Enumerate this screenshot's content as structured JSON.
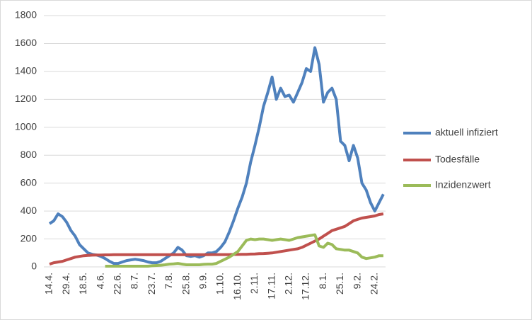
{
  "chart_data": {
    "type": "line",
    "categories": [
      "14.4.",
      null,
      null,
      null,
      "29.4.",
      null,
      null,
      null,
      "18.5.",
      null,
      null,
      null,
      "4.6.",
      null,
      null,
      null,
      "22.6.",
      null,
      null,
      null,
      "8.7.",
      null,
      null,
      null,
      "23.7.",
      null,
      null,
      null,
      "7.8.",
      null,
      null,
      null,
      "25.8.",
      null,
      null,
      null,
      "9.9.",
      null,
      null,
      null,
      "1.10.",
      null,
      null,
      null,
      "16.10.",
      null,
      null,
      null,
      "2.11.",
      null,
      null,
      null,
      "17.11.",
      null,
      null,
      null,
      "2.12.",
      null,
      null,
      null,
      "17.12.",
      null,
      null,
      null,
      "8.1.",
      null,
      null,
      null,
      "25.1.",
      null,
      null,
      null,
      "9.2.",
      null,
      null,
      null,
      "24.2.",
      null,
      null
    ],
    "series": [
      {
        "name": "aktuell infiziert",
        "color": "#4f81bd",
        "values": [
          310,
          330,
          380,
          360,
          320,
          260,
          220,
          160,
          130,
          100,
          90,
          85,
          75,
          60,
          40,
          25,
          25,
          35,
          45,
          50,
          55,
          50,
          45,
          35,
          30,
          30,
          40,
          60,
          80,
          100,
          140,
          120,
          80,
          75,
          80,
          70,
          80,
          100,
          100,
          110,
          140,
          180,
          250,
          330,
          420,
          500,
          600,
          750,
          870,
          1000,
          1150,
          1250,
          1360,
          1200,
          1280,
          1220,
          1230,
          1180,
          1250,
          1320,
          1420,
          1400,
          1570,
          1450,
          1180,
          1250,
          1280,
          1200,
          900,
          870,
          760,
          870,
          780,
          600,
          550,
          460,
          400,
          460,
          520
        ]
      },
      {
        "name": "Todesfälle",
        "color": "#c0504d",
        "values": [
          20,
          30,
          35,
          40,
          50,
          60,
          70,
          75,
          80,
          82,
          84,
          85,
          85,
          86,
          86,
          87,
          87,
          87,
          87,
          87,
          87,
          87,
          87,
          87,
          87,
          87,
          87,
          87,
          87,
          87,
          87,
          87,
          87,
          87,
          87,
          87,
          87,
          87,
          88,
          88,
          88,
          88,
          88,
          89,
          89,
          90,
          90,
          92,
          93,
          95,
          96,
          98,
          100,
          105,
          110,
          115,
          120,
          125,
          130,
          140,
          155,
          170,
          185,
          200,
          220,
          240,
          260,
          270,
          280,
          290,
          310,
          330,
          340,
          350,
          355,
          360,
          365,
          375,
          380
        ]
      },
      {
        "name": "Inzidenzwert",
        "color": "#9bbb59",
        "values": [
          null,
          null,
          null,
          null,
          null,
          null,
          null,
          null,
          null,
          null,
          null,
          null,
          null,
          5,
          5,
          5,
          5,
          5,
          5,
          5,
          5,
          5,
          5,
          5,
          8,
          10,
          12,
          15,
          20,
          22,
          25,
          20,
          15,
          15,
          15,
          15,
          18,
          20,
          20,
          25,
          40,
          55,
          70,
          90,
          110,
          150,
          190,
          200,
          195,
          200,
          200,
          195,
          190,
          195,
          200,
          195,
          190,
          200,
          210,
          215,
          220,
          225,
          230,
          150,
          140,
          170,
          160,
          130,
          125,
          120,
          120,
          110,
          100,
          70,
          60,
          65,
          70,
          80,
          80
        ]
      }
    ],
    "ylim": [
      0,
      1800
    ],
    "yticks": [
      0,
      200,
      400,
      600,
      800,
      1000,
      1200,
      1400,
      1600,
      1800
    ],
    "grid": true,
    "legend": "right"
  }
}
